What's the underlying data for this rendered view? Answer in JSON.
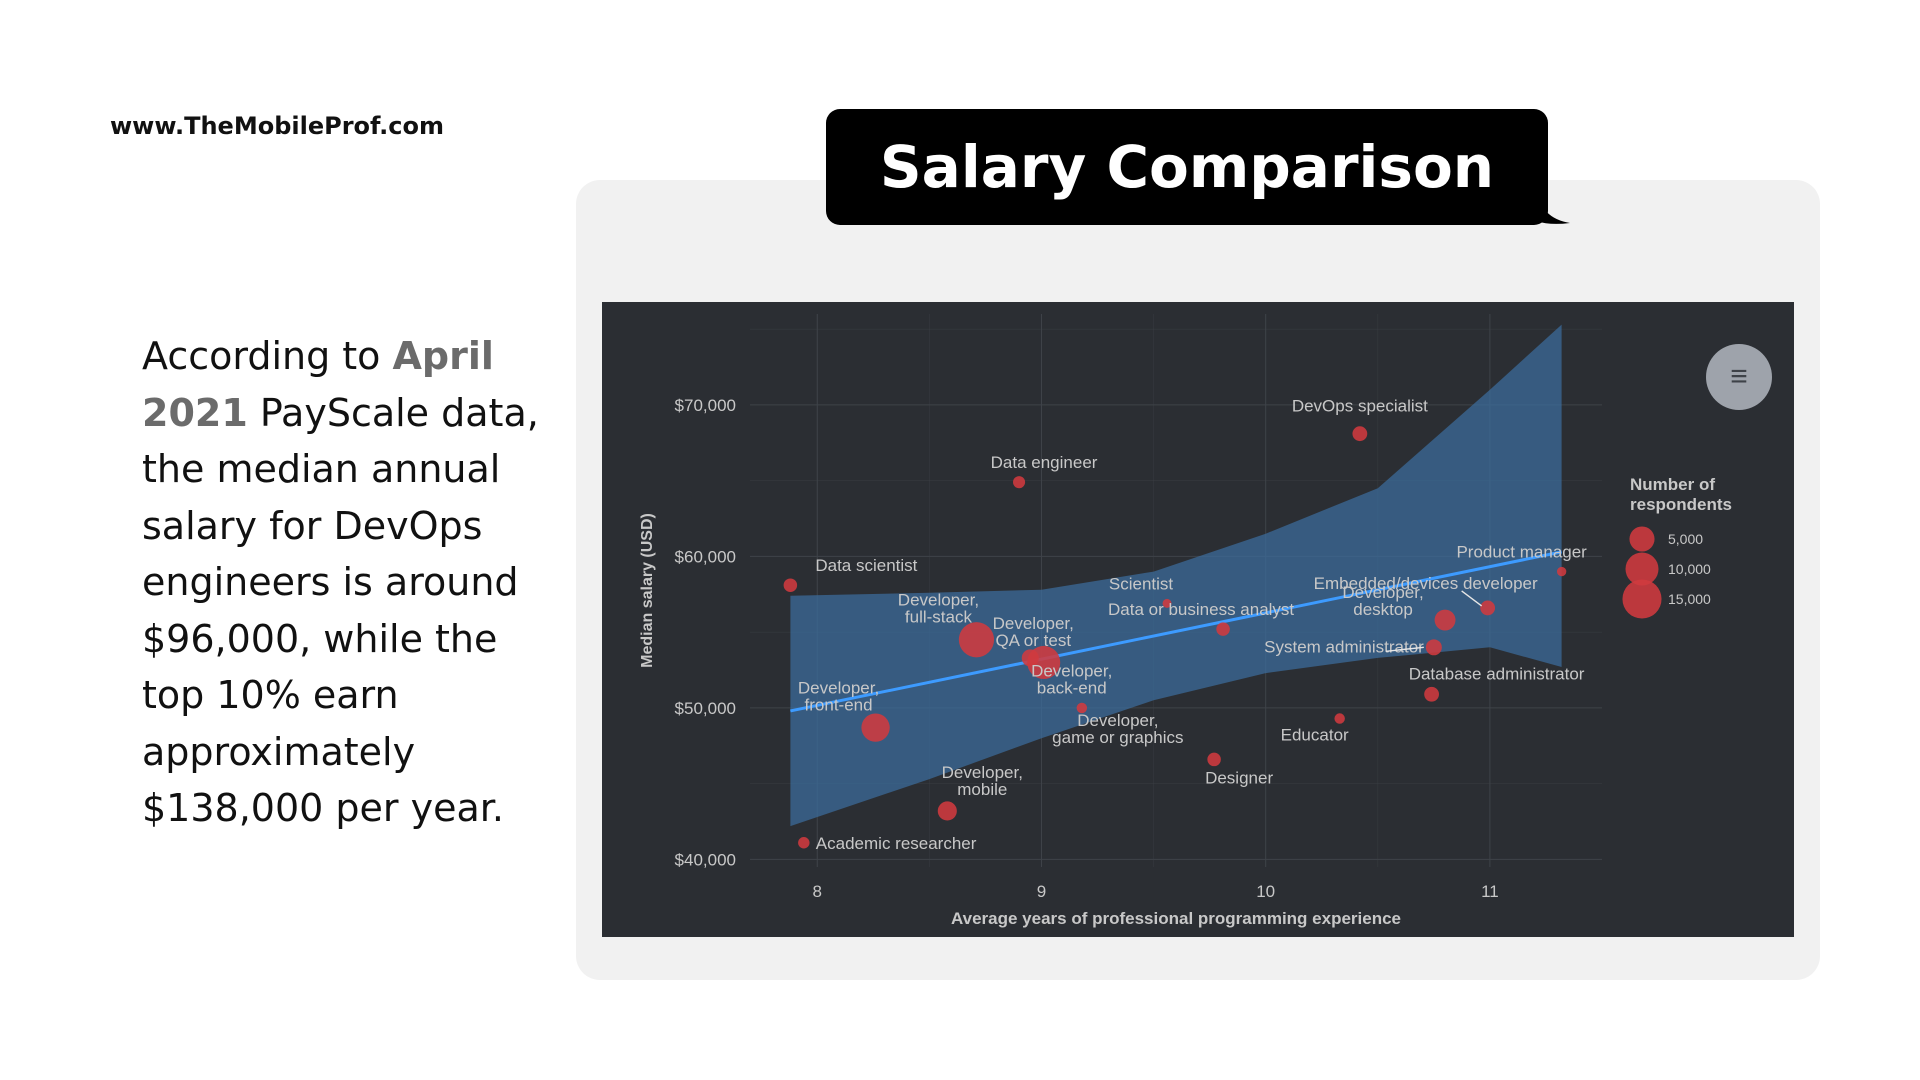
{
  "site": {
    "url": "www.TheMobileProf.com"
  },
  "intro": {
    "pre": "According to ",
    "highlight": "April 2021",
    "post": " PayScale data, the median annual salary for DevOps engineers is around $96,000, while the top 10% earn approximately $138,000 per year."
  },
  "title": "Salary Comparison",
  "menu": {
    "icon": "hamburger-menu-icon",
    "glyph": "≡"
  },
  "colors": {
    "background": "#2b2e33",
    "point": "#d03a3f",
    "trend": "#3d9bff",
    "band": "#3b6e9e",
    "grid": "#3f4349",
    "text": "#c8c8c8"
  },
  "chart_data": {
    "type": "scatter",
    "title": "",
    "xlabel": "Average years of professional programming experience",
    "ylabel": "Median salary (USD)",
    "xlim": [
      7.7,
      11.5
    ],
    "ylim": [
      39500,
      76000
    ],
    "xticks": [
      8,
      9,
      10,
      11
    ],
    "xtick_labels": [
      "8",
      "9",
      "10",
      "11"
    ],
    "yticks": [
      40000,
      50000,
      60000,
      70000
    ],
    "ytick_labels": [
      "$40,000",
      "$50,000",
      "$60,000",
      "$70,000"
    ],
    "grid": true,
    "legend": {
      "title_lines": [
        "Number of",
        "respondents"
      ],
      "placement": "right",
      "entries": [
        {
          "label": "5,000",
          "size": 5000
        },
        {
          "label": "10,000",
          "size": 10000
        },
        {
          "label": "15,000",
          "size": 15000
        }
      ]
    },
    "points": [
      {
        "label_lines": [
          "DevOps specialist"
        ],
        "x": 10.42,
        "y": 68100,
        "n": 3000
      },
      {
        "label_lines": [
          "Data engineer"
        ],
        "x": 8.9,
        "y": 64900,
        "n": 2000
      },
      {
        "label_lines": [
          "Data scientist"
        ],
        "x": 7.88,
        "y": 58100,
        "n": 2500
      },
      {
        "label_lines": [
          "Product manager"
        ],
        "x": 11.32,
        "y": 59000,
        "n": 1200
      },
      {
        "label_lines": [
          "Scientist"
        ],
        "x": 9.56,
        "y": 56900,
        "n": 900
      },
      {
        "label_lines": [
          "Embedded/devices developer"
        ],
        "x": 10.99,
        "y": 56600,
        "n": 3000
      },
      {
        "label_lines": [
          "Data or business analyst"
        ],
        "x": 9.81,
        "y": 55200,
        "n": 2500
      },
      {
        "label_lines": [
          "Developer,",
          "desktop"
        ],
        "x": 10.8,
        "y": 55800,
        "n": 6000
      },
      {
        "label_lines": [
          "Developer,",
          "full-stack"
        ],
        "x": 8.71,
        "y": 54500,
        "n": 17000
      },
      {
        "label_lines": [
          "Developer,",
          "QA or test"
        ],
        "x": 8.95,
        "y": 53300,
        "n": 4000
      },
      {
        "label_lines": [
          "System administrator"
        ],
        "x": 10.75,
        "y": 54000,
        "n": 3500
      },
      {
        "label_lines": [
          "Developer,",
          "back-end"
        ],
        "x": 9.01,
        "y": 53000,
        "n": 15000
      },
      {
        "label_lines": [
          "Database administrator"
        ],
        "x": 10.74,
        "y": 50900,
        "n": 3000
      },
      {
        "label_lines": [
          "Developer,",
          "front-end"
        ],
        "x": 8.26,
        "y": 48700,
        "n": 11000
      },
      {
        "label_lines": [
          "Developer,",
          "game or graphics"
        ],
        "x": 9.18,
        "y": 50000,
        "n": 1500
      },
      {
        "label_lines": [
          "Educator"
        ],
        "x": 10.33,
        "y": 49300,
        "n": 1500
      },
      {
        "label_lines": [
          "Designer"
        ],
        "x": 9.77,
        "y": 46600,
        "n": 2500
      },
      {
        "label_lines": [
          "Developer,",
          "mobile"
        ],
        "x": 8.58,
        "y": 43200,
        "n": 5000
      },
      {
        "label_lines": [
          "Academic researcher"
        ],
        "x": 7.94,
        "y": 41100,
        "n": 1800
      }
    ],
    "trend_line": {
      "x": [
        7.88,
        11.32
      ],
      "y": [
        49800,
        60300
      ]
    },
    "confidence_band": {
      "upper": [
        [
          7.88,
          57400
        ],
        [
          8.5,
          57600
        ],
        [
          9.0,
          57800
        ],
        [
          9.5,
          59000
        ],
        [
          10.0,
          61500
        ],
        [
          10.5,
          64500
        ],
        [
          11.0,
          71000
        ],
        [
          11.32,
          75300
        ]
      ],
      "lower": [
        [
          7.88,
          42200
        ],
        [
          8.5,
          45300
        ],
        [
          9.0,
          48000
        ],
        [
          9.5,
          50500
        ],
        [
          10.0,
          52300
        ],
        [
          10.5,
          53300
        ],
        [
          11.0,
          54000
        ],
        [
          11.32,
          52700
        ]
      ]
    }
  }
}
